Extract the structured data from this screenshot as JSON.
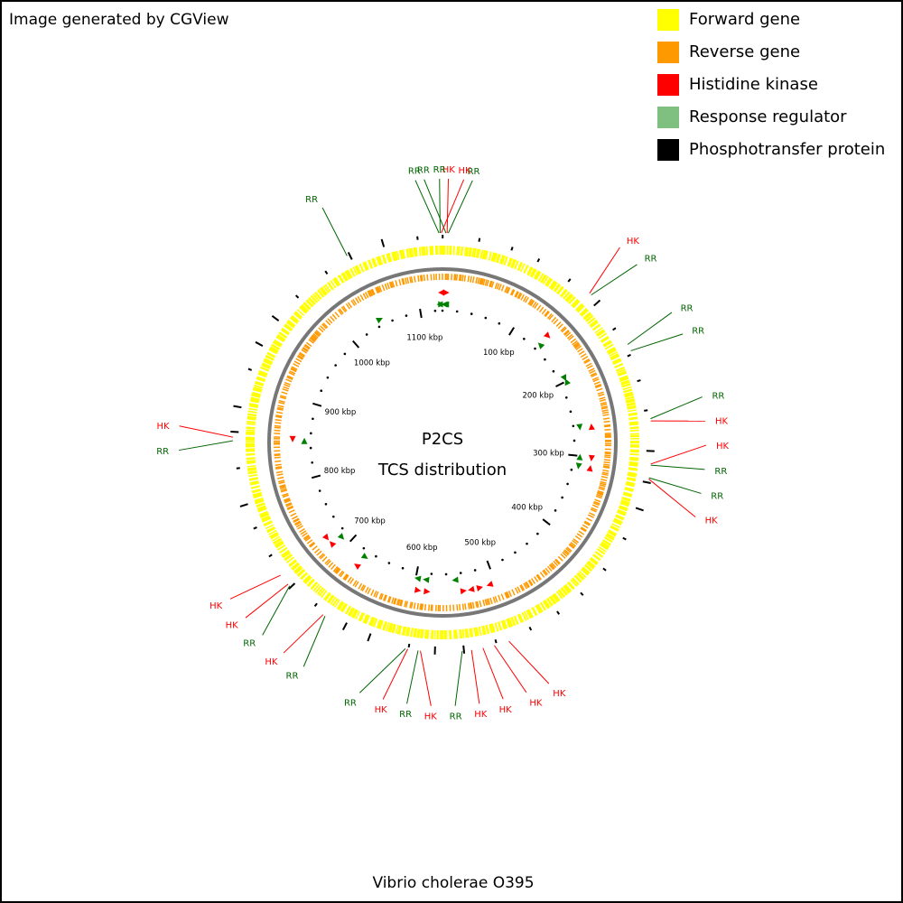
{
  "credit": "Image generated by CGView",
  "center_title": "P2CS",
  "center_subtitle": "TCS distribution",
  "organism": "Vibrio cholerae O395",
  "legend": [
    {
      "label": "Forward gene",
      "color": "#FFFF00"
    },
    {
      "label": "Reverse gene",
      "color": "#FF9900"
    },
    {
      "label": "Histidine kinase",
      "color": "#FF0000"
    },
    {
      "label": "Response regulator",
      "color": "#7FBF7F"
    },
    {
      "label": "Phosphotransfer protein",
      "color": "#000000"
    }
  ],
  "colors": {
    "rr_label": "#006400",
    "rr_marker": "#008000",
    "hk": "#FF0000",
    "backbone": "#777777"
  },
  "genome_length_kbp": 1130,
  "ruler_ticks_kbp": [
    100,
    200,
    300,
    400,
    500,
    600,
    700,
    800,
    900,
    1000,
    1100
  ],
  "ruler_unit": "kbp",
  "features": [
    {
      "label": "RR",
      "type": "RR",
      "position_kbp": 1127
    },
    {
      "label": "RR",
      "type": "RR",
      "position_kbp": 1128
    },
    {
      "label": "HK",
      "type": "HK",
      "position_kbp": 1129
    },
    {
      "label": "RR",
      "type": "RR",
      "position_kbp": 3
    },
    {
      "label": "HK",
      "type": "HK",
      "position_kbp": 4
    },
    {
      "label": "RR",
      "type": "RR",
      "position_kbp": 5
    },
    {
      "label": "HK",
      "type": "HK",
      "position_kbp": 140
    },
    {
      "label": "RR",
      "type": "RR",
      "position_kbp": 142
    },
    {
      "label": "RR",
      "type": "RR",
      "position_kbp": 195
    },
    {
      "label": "RR",
      "type": "RR",
      "position_kbp": 201
    },
    {
      "label": "RR",
      "type": "RR",
      "position_kbp": 262
    },
    {
      "label": "HK",
      "type": "HK",
      "position_kbp": 264
    },
    {
      "label": "HK",
      "type": "HK",
      "position_kbp": 301
    },
    {
      "label": "RR",
      "type": "RR",
      "position_kbp": 302
    },
    {
      "label": "RR",
      "type": "RR",
      "position_kbp": 313
    },
    {
      "label": "HK",
      "type": "HK",
      "position_kbp": 314
    },
    {
      "label": "HK",
      "type": "HK",
      "position_kbp": 507
    },
    {
      "label": "HK",
      "type": "HK",
      "position_kbp": 520
    },
    {
      "label": "HK",
      "type": "HK",
      "position_kbp": 530
    },
    {
      "label": "HK",
      "type": "HK",
      "position_kbp": 540
    },
    {
      "label": "RR",
      "type": "RR",
      "position_kbp": 548
    },
    {
      "label": "HK",
      "type": "HK",
      "position_kbp": 584
    },
    {
      "label": "RR",
      "type": "RR",
      "position_kbp": 586
    },
    {
      "label": "HK",
      "type": "HK",
      "position_kbp": 595
    },
    {
      "label": "RR",
      "type": "RR",
      "position_kbp": 597
    },
    {
      "label": "RR",
      "type": "RR",
      "position_kbp": 672
    },
    {
      "label": "HK",
      "type": "HK",
      "position_kbp": 674
    },
    {
      "label": "RR",
      "type": "RR",
      "position_kbp": 712
    },
    {
      "label": "HK",
      "type": "HK",
      "position_kbp": 714
    },
    {
      "label": "HK",
      "type": "HK",
      "position_kbp": 724
    },
    {
      "label": "RR",
      "type": "RR",
      "position_kbp": 849
    },
    {
      "label": "HK",
      "type": "HK",
      "position_kbp": 852
    },
    {
      "label": "RR",
      "type": "RR",
      "position_kbp": 1045
    }
  ]
}
